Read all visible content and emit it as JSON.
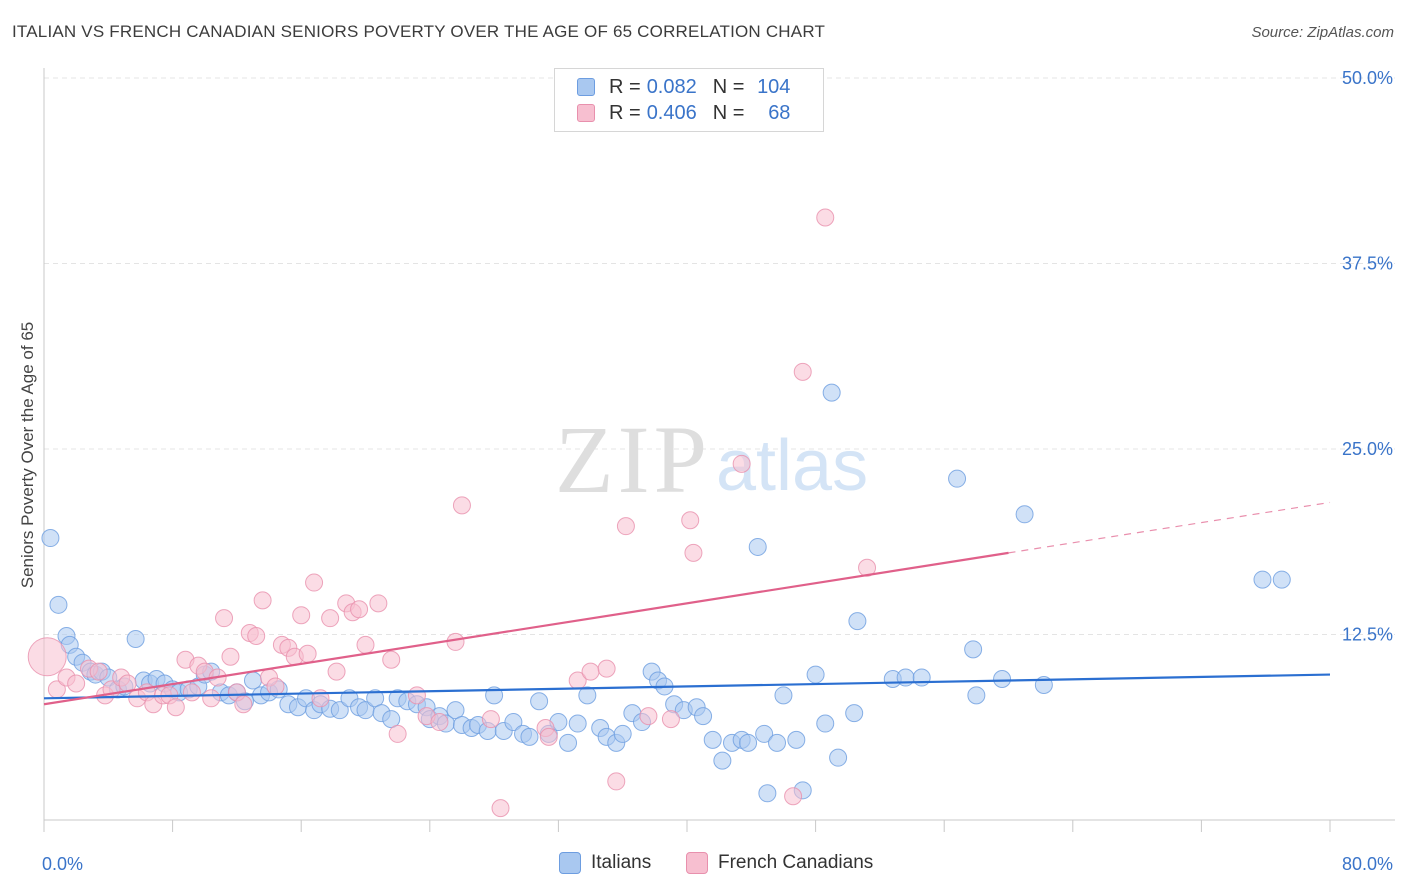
{
  "header": {
    "title": "ITALIAN VS FRENCH CANADIAN SENIORS POVERTY OVER THE AGE OF 65 CORRELATION CHART",
    "source": "Source: ZipAtlas.com"
  },
  "watermark": {
    "zip": "ZIP",
    "atlas": "atlas"
  },
  "stats_legend": [
    {
      "r_label": "R =",
      "r_value": "0.082",
      "n_label": "N =",
      "n_value": "104",
      "color": "#a9c8f0",
      "stroke": "#6d9de0"
    },
    {
      "r_label": "R =",
      "r_value": "0.406",
      "n_label": "N =",
      "n_value": "68",
      "color": "#f7bfd0",
      "stroke": "#e890ad"
    }
  ],
  "bottom_legend": [
    {
      "label": "Italians",
      "color": "#a9c8f0",
      "stroke": "#6d9de0"
    },
    {
      "label": "French Canadians",
      "color": "#f7bfd0",
      "stroke": "#e890ad"
    }
  ],
  "chart_data": {
    "type": "scatter",
    "title": "ITALIAN VS FRENCH CANADIAN SENIORS POVERTY OVER THE AGE OF 65 CORRELATION CHART",
    "xlabel": "",
    "ylabel": "Seniors Poverty Over the Age of 65",
    "xlim": [
      0,
      80
    ],
    "ylim": [
      0,
      50
    ],
    "x_tick_labels": [
      "0.0%",
      "80.0%"
    ],
    "y_tick_labels": [
      "12.5%",
      "25.0%",
      "37.5%",
      "50.0%"
    ],
    "y_ticks": [
      12.5,
      25,
      37.5,
      50
    ],
    "grid": "horizontal dashed",
    "legend_position": "top-center",
    "series": [
      {
        "name": "Italians",
        "color": "#6d9de0",
        "fill": "#a9c8f0",
        "trend": {
          "x": [
            0,
            80
          ],
          "y": [
            8.2,
            9.8
          ]
        },
        "points": [
          [
            0.4,
            19.0
          ],
          [
            0.9,
            14.5
          ],
          [
            1.4,
            12.4
          ],
          [
            1.6,
            11.8
          ],
          [
            2.0,
            11.0
          ],
          [
            2.4,
            10.6
          ],
          [
            2.9,
            10.0
          ],
          [
            3.2,
            9.8
          ],
          [
            3.6,
            10.0
          ],
          [
            4.0,
            9.6
          ],
          [
            4.6,
            8.8
          ],
          [
            5.0,
            9.0
          ],
          [
            5.7,
            12.2
          ],
          [
            6.2,
            9.4
          ],
          [
            6.6,
            9.2
          ],
          [
            7.0,
            9.5
          ],
          [
            7.5,
            9.2
          ],
          [
            8.0,
            8.8
          ],
          [
            8.4,
            8.6
          ],
          [
            9.0,
            8.8
          ],
          [
            9.6,
            9.0
          ],
          [
            10.0,
            9.8
          ],
          [
            10.4,
            10.0
          ],
          [
            11.0,
            8.6
          ],
          [
            11.5,
            8.4
          ],
          [
            12.0,
            8.6
          ],
          [
            12.5,
            8.0
          ],
          [
            13.0,
            9.4
          ],
          [
            13.5,
            8.4
          ],
          [
            14.0,
            8.6
          ],
          [
            14.6,
            8.8
          ],
          [
            15.2,
            7.8
          ],
          [
            15.8,
            7.6
          ],
          [
            16.3,
            8.2
          ],
          [
            16.8,
            7.4
          ],
          [
            17.2,
            7.8
          ],
          [
            17.8,
            7.5
          ],
          [
            18.4,
            7.4
          ],
          [
            19.0,
            8.2
          ],
          [
            19.6,
            7.6
          ],
          [
            20.0,
            7.4
          ],
          [
            20.6,
            8.2
          ],
          [
            21.0,
            7.2
          ],
          [
            21.6,
            6.8
          ],
          [
            22.0,
            8.2
          ],
          [
            22.6,
            8.0
          ],
          [
            23.2,
            7.8
          ],
          [
            23.8,
            7.6
          ],
          [
            24.0,
            6.8
          ],
          [
            24.6,
            7.0
          ],
          [
            25.0,
            6.5
          ],
          [
            25.6,
            7.4
          ],
          [
            26.0,
            6.4
          ],
          [
            26.6,
            6.2
          ],
          [
            27.0,
            6.4
          ],
          [
            27.6,
            6.0
          ],
          [
            28.0,
            8.4
          ],
          [
            28.6,
            6.0
          ],
          [
            29.2,
            6.6
          ],
          [
            29.8,
            5.8
          ],
          [
            30.2,
            5.6
          ],
          [
            30.8,
            8.0
          ],
          [
            31.4,
            5.8
          ],
          [
            32.0,
            6.6
          ],
          [
            32.6,
            5.2
          ],
          [
            33.2,
            6.5
          ],
          [
            33.8,
            8.4
          ],
          [
            34.6,
            6.2
          ],
          [
            35.0,
            5.6
          ],
          [
            35.6,
            5.2
          ],
          [
            36.0,
            5.8
          ],
          [
            36.6,
            7.2
          ],
          [
            37.2,
            6.6
          ],
          [
            37.8,
            10.0
          ],
          [
            38.2,
            9.4
          ],
          [
            38.6,
            9.0
          ],
          [
            39.2,
            7.8
          ],
          [
            39.8,
            7.4
          ],
          [
            40.6,
            7.6
          ],
          [
            41.0,
            7.0
          ],
          [
            41.6,
            5.4
          ],
          [
            42.2,
            4.0
          ],
          [
            42.8,
            5.2
          ],
          [
            43.4,
            5.4
          ],
          [
            43.8,
            5.2
          ],
          [
            44.4,
            18.4
          ],
          [
            44.8,
            5.8
          ],
          [
            45.0,
            1.8
          ],
          [
            45.6,
            5.2
          ],
          [
            46.0,
            8.4
          ],
          [
            46.8,
            5.4
          ],
          [
            47.2,
            2.0
          ],
          [
            48.0,
            9.8
          ],
          [
            48.6,
            6.5
          ],
          [
            49.0,
            28.8
          ],
          [
            49.4,
            4.2
          ],
          [
            50.4,
            7.2
          ],
          [
            50.6,
            13.4
          ],
          [
            52.8,
            9.5
          ],
          [
            53.6,
            9.6
          ],
          [
            54.6,
            9.6
          ],
          [
            56.8,
            23.0
          ],
          [
            57.8,
            11.5
          ],
          [
            58.0,
            8.4
          ],
          [
            59.6,
            9.5
          ],
          [
            61.0,
            20.6
          ],
          [
            62.2,
            9.1
          ],
          [
            75.8,
            16.2
          ],
          [
            77.0,
            16.2
          ]
        ]
      },
      {
        "name": "French Canadians",
        "color": "#e890ad",
        "fill": "#f7bfd0",
        "trend": {
          "x": [
            0,
            60
          ],
          "y": [
            7.8,
            18.0
          ]
        },
        "trend_dashed": {
          "x": [
            60,
            80
          ],
          "y": [
            18.0,
            21.4
          ]
        },
        "points": [
          [
            0.2,
            11.0
          ],
          [
            0.8,
            8.8
          ],
          [
            1.4,
            9.6
          ],
          [
            2.0,
            9.2
          ],
          [
            2.8,
            10.2
          ],
          [
            3.4,
            10.0
          ],
          [
            3.8,
            8.4
          ],
          [
            4.2,
            8.8
          ],
          [
            4.8,
            9.6
          ],
          [
            5.2,
            9.2
          ],
          [
            5.8,
            8.2
          ],
          [
            6.4,
            8.6
          ],
          [
            6.8,
            7.8
          ],
          [
            7.4,
            8.4
          ],
          [
            7.8,
            8.4
          ],
          [
            8.2,
            7.6
          ],
          [
            8.8,
            10.8
          ],
          [
            9.2,
            8.6
          ],
          [
            9.6,
            10.4
          ],
          [
            10.0,
            10.0
          ],
          [
            10.4,
            8.2
          ],
          [
            10.8,
            9.6
          ],
          [
            11.2,
            13.6
          ],
          [
            11.6,
            11.0
          ],
          [
            12.0,
            8.6
          ],
          [
            12.4,
            7.8
          ],
          [
            12.8,
            12.6
          ],
          [
            13.2,
            12.4
          ],
          [
            13.6,
            14.8
          ],
          [
            14.0,
            9.6
          ],
          [
            14.4,
            9.0
          ],
          [
            14.8,
            11.8
          ],
          [
            15.2,
            11.6
          ],
          [
            15.6,
            11.0
          ],
          [
            16.0,
            13.8
          ],
          [
            16.4,
            11.2
          ],
          [
            16.8,
            16.0
          ],
          [
            17.2,
            8.2
          ],
          [
            17.8,
            13.6
          ],
          [
            18.2,
            10.0
          ],
          [
            18.8,
            14.6
          ],
          [
            19.2,
            14.0
          ],
          [
            19.6,
            14.2
          ],
          [
            20.0,
            11.8
          ],
          [
            20.8,
            14.6
          ],
          [
            21.6,
            10.8
          ],
          [
            22.0,
            5.8
          ],
          [
            23.2,
            8.4
          ],
          [
            23.8,
            7.0
          ],
          [
            24.6,
            6.6
          ],
          [
            25.6,
            12.0
          ],
          [
            26.0,
            21.2
          ],
          [
            27.8,
            6.8
          ],
          [
            28.4,
            0.8
          ],
          [
            31.2,
            6.2
          ],
          [
            31.4,
            5.6
          ],
          [
            33.2,
            9.4
          ],
          [
            34.0,
            10.0
          ],
          [
            35.0,
            10.2
          ],
          [
            35.6,
            2.6
          ],
          [
            36.2,
            19.8
          ],
          [
            37.6,
            7.0
          ],
          [
            39.0,
            6.8
          ],
          [
            40.2,
            20.2
          ],
          [
            40.4,
            18.0
          ],
          [
            43.4,
            24.0
          ],
          [
            46.6,
            1.6
          ],
          [
            47.2,
            30.2
          ],
          [
            48.6,
            40.6
          ],
          [
            51.2,
            17.0
          ]
        ]
      }
    ]
  }
}
